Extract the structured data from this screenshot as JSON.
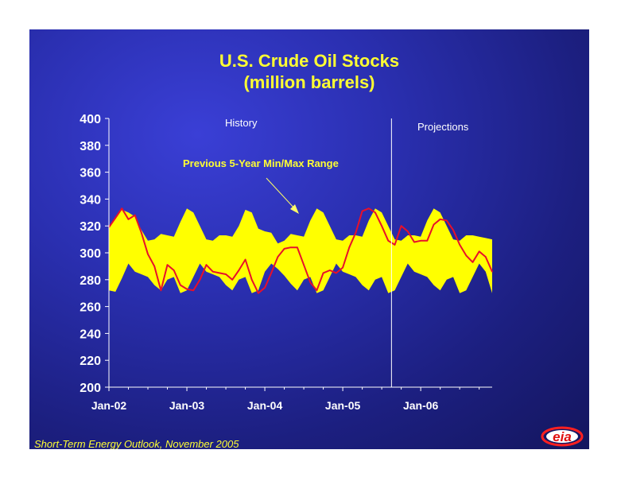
{
  "slide": {
    "title_line1": "U.S. Crude Oil Stocks",
    "title_line2": "(million barrels)",
    "footer": "Short-Term Energy Outlook, November 2005",
    "logo_text": "eia"
  },
  "colors": {
    "title": "#ffff33",
    "band": "#ffff00",
    "line": "#e8102a",
    "axis": "#ffffff",
    "background": "#2a2fb0"
  },
  "chart_data": {
    "type": "area",
    "title": "U.S. Crude Oil Stocks",
    "subtitle": "(million barrels)",
    "xlabel": "",
    "ylabel": "",
    "ylim": [
      200,
      400
    ],
    "yticks": [
      200,
      220,
      240,
      260,
      280,
      300,
      320,
      340,
      360,
      380,
      400
    ],
    "xlim": [
      0,
      59
    ],
    "xticks": [
      {
        "label": "Jan-02",
        "x": 0
      },
      {
        "label": "Jan-03",
        "x": 12
      },
      {
        "label": "Jan-04",
        "x": 24
      },
      {
        "label": "Jan-05",
        "x": 36
      },
      {
        "label": "Jan-06",
        "x": 48
      }
    ],
    "grid": false,
    "annotations": {
      "history": "History",
      "projections": "Projections",
      "range": "Previous 5-Year Min/Max Range"
    },
    "divider_x": 43.5,
    "series": [
      {
        "name": "Previous 5-Year Min/Max Range",
        "kind": "band",
        "upper": [
          319,
          325,
          332,
          330,
          327,
          317,
          309,
          310,
          314,
          313,
          312,
          323,
          333,
          330,
          320,
          310,
          309,
          313,
          313,
          312,
          320,
          332,
          330,
          318,
          316,
          315,
          307,
          309,
          314,
          313,
          312,
          324,
          333,
          330,
          320,
          310,
          309,
          313,
          313,
          312,
          324,
          333,
          330,
          320,
          310,
          309,
          313,
          313,
          312,
          324,
          333,
          330,
          320,
          310,
          309,
          313,
          313,
          312,
          311,
          310
        ],
        "lower": [
          272,
          271,
          281,
          292,
          286,
          284,
          282,
          276,
          272,
          280,
          282,
          270,
          272,
          282,
          292,
          286,
          284,
          282,
          276,
          272,
          280,
          282,
          270,
          272,
          286,
          292,
          288,
          283,
          277,
          272,
          280,
          282,
          270,
          272,
          282,
          292,
          286,
          284,
          282,
          276,
          272,
          280,
          282,
          270,
          272,
          282,
          292,
          286,
          284,
          282,
          276,
          272,
          280,
          282,
          270,
          272,
          282,
          292,
          286,
          270
        ]
      },
      {
        "name": "U.S. Crude Oil Stocks",
        "kind": "line",
        "values": [
          319,
          326,
          333,
          325,
          328,
          315,
          299,
          290,
          272,
          291,
          287,
          276,
          273,
          272,
          280,
          291,
          286,
          285,
          284,
          280,
          287,
          295,
          280,
          270,
          274,
          285,
          297,
          303,
          304,
          304,
          291,
          278,
          272,
          285,
          287,
          285,
          289,
          304,
          315,
          331,
          333,
          330,
          320,
          309,
          306,
          320,
          316,
          308,
          309,
          309,
          321,
          325,
          324,
          317,
          306,
          298,
          293,
          301,
          297,
          286
        ]
      }
    ]
  }
}
